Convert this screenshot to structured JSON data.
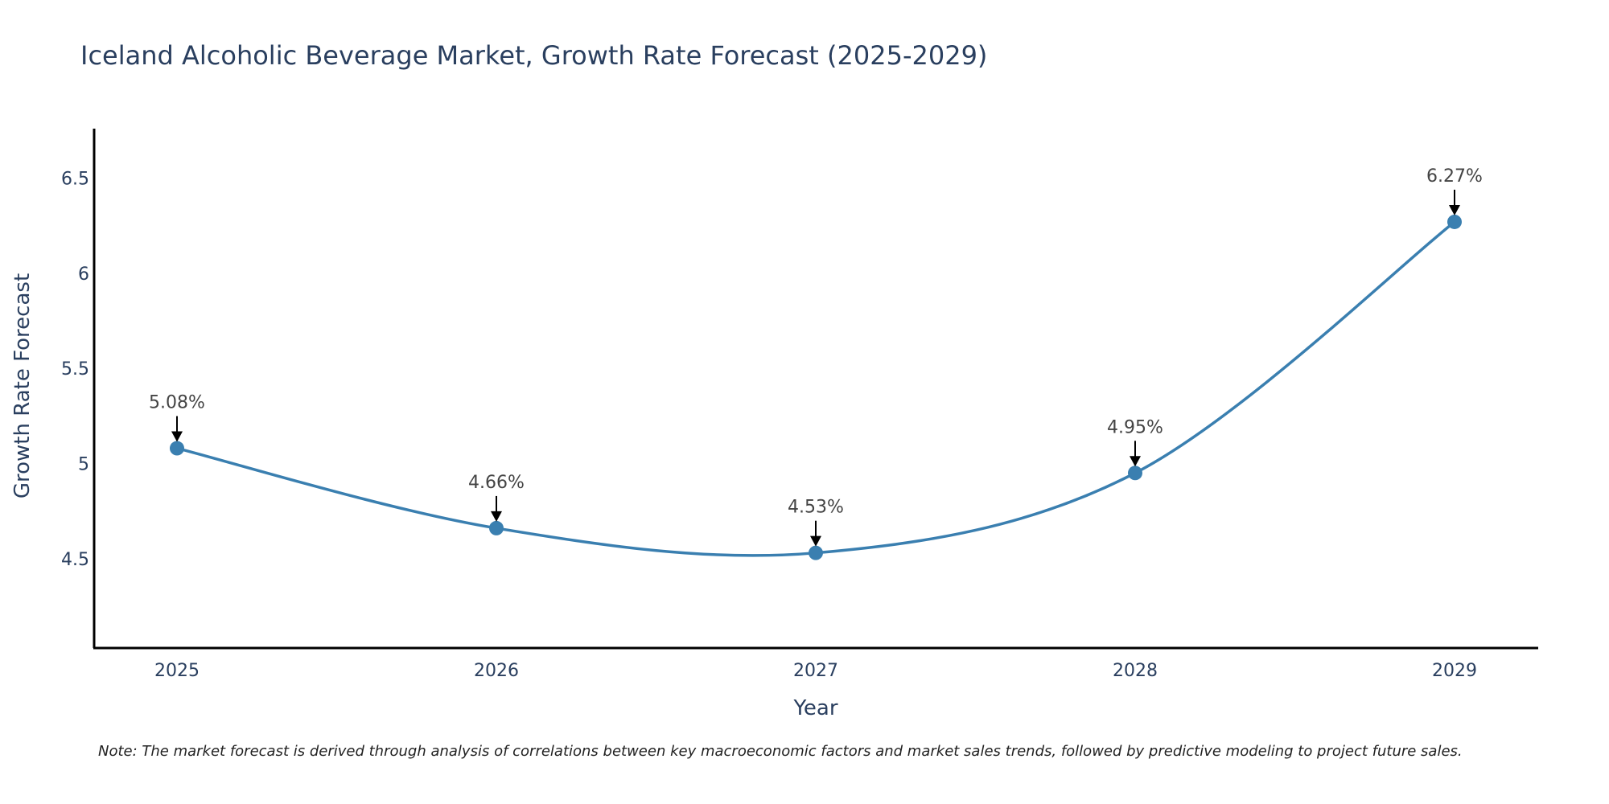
{
  "chart_data": {
    "type": "line",
    "title": "Iceland Alcoholic Beverage Market, Growth Rate Forecast (2025-2029)",
    "xlabel": "Year",
    "ylabel": "Growth Rate Forecast",
    "categories": [
      "2025",
      "2026",
      "2027",
      "2028",
      "2029"
    ],
    "series": [
      {
        "name": "Growth Rate Forecast",
        "values": [
          5.08,
          4.66,
          4.53,
          4.95,
          6.27
        ],
        "labels": [
          "5.08%",
          "4.66%",
          "4.53%",
          "4.95%",
          "6.27%"
        ]
      }
    ],
    "yticks": [
      4.5,
      5,
      5.5,
      6,
      6.5
    ],
    "ytick_labels": [
      "4.5",
      "5",
      "5.5",
      "6",
      "6.5"
    ],
    "ylim": [
      4.03,
      6.76
    ],
    "grid": false,
    "line_color": "#3a7fb0",
    "axis_color": "#000000",
    "note": "Note: The market forecast is derived through analysis of correlations between key macroeconomic factors and market sales trends, followed by predictive modeling to project future sales."
  }
}
